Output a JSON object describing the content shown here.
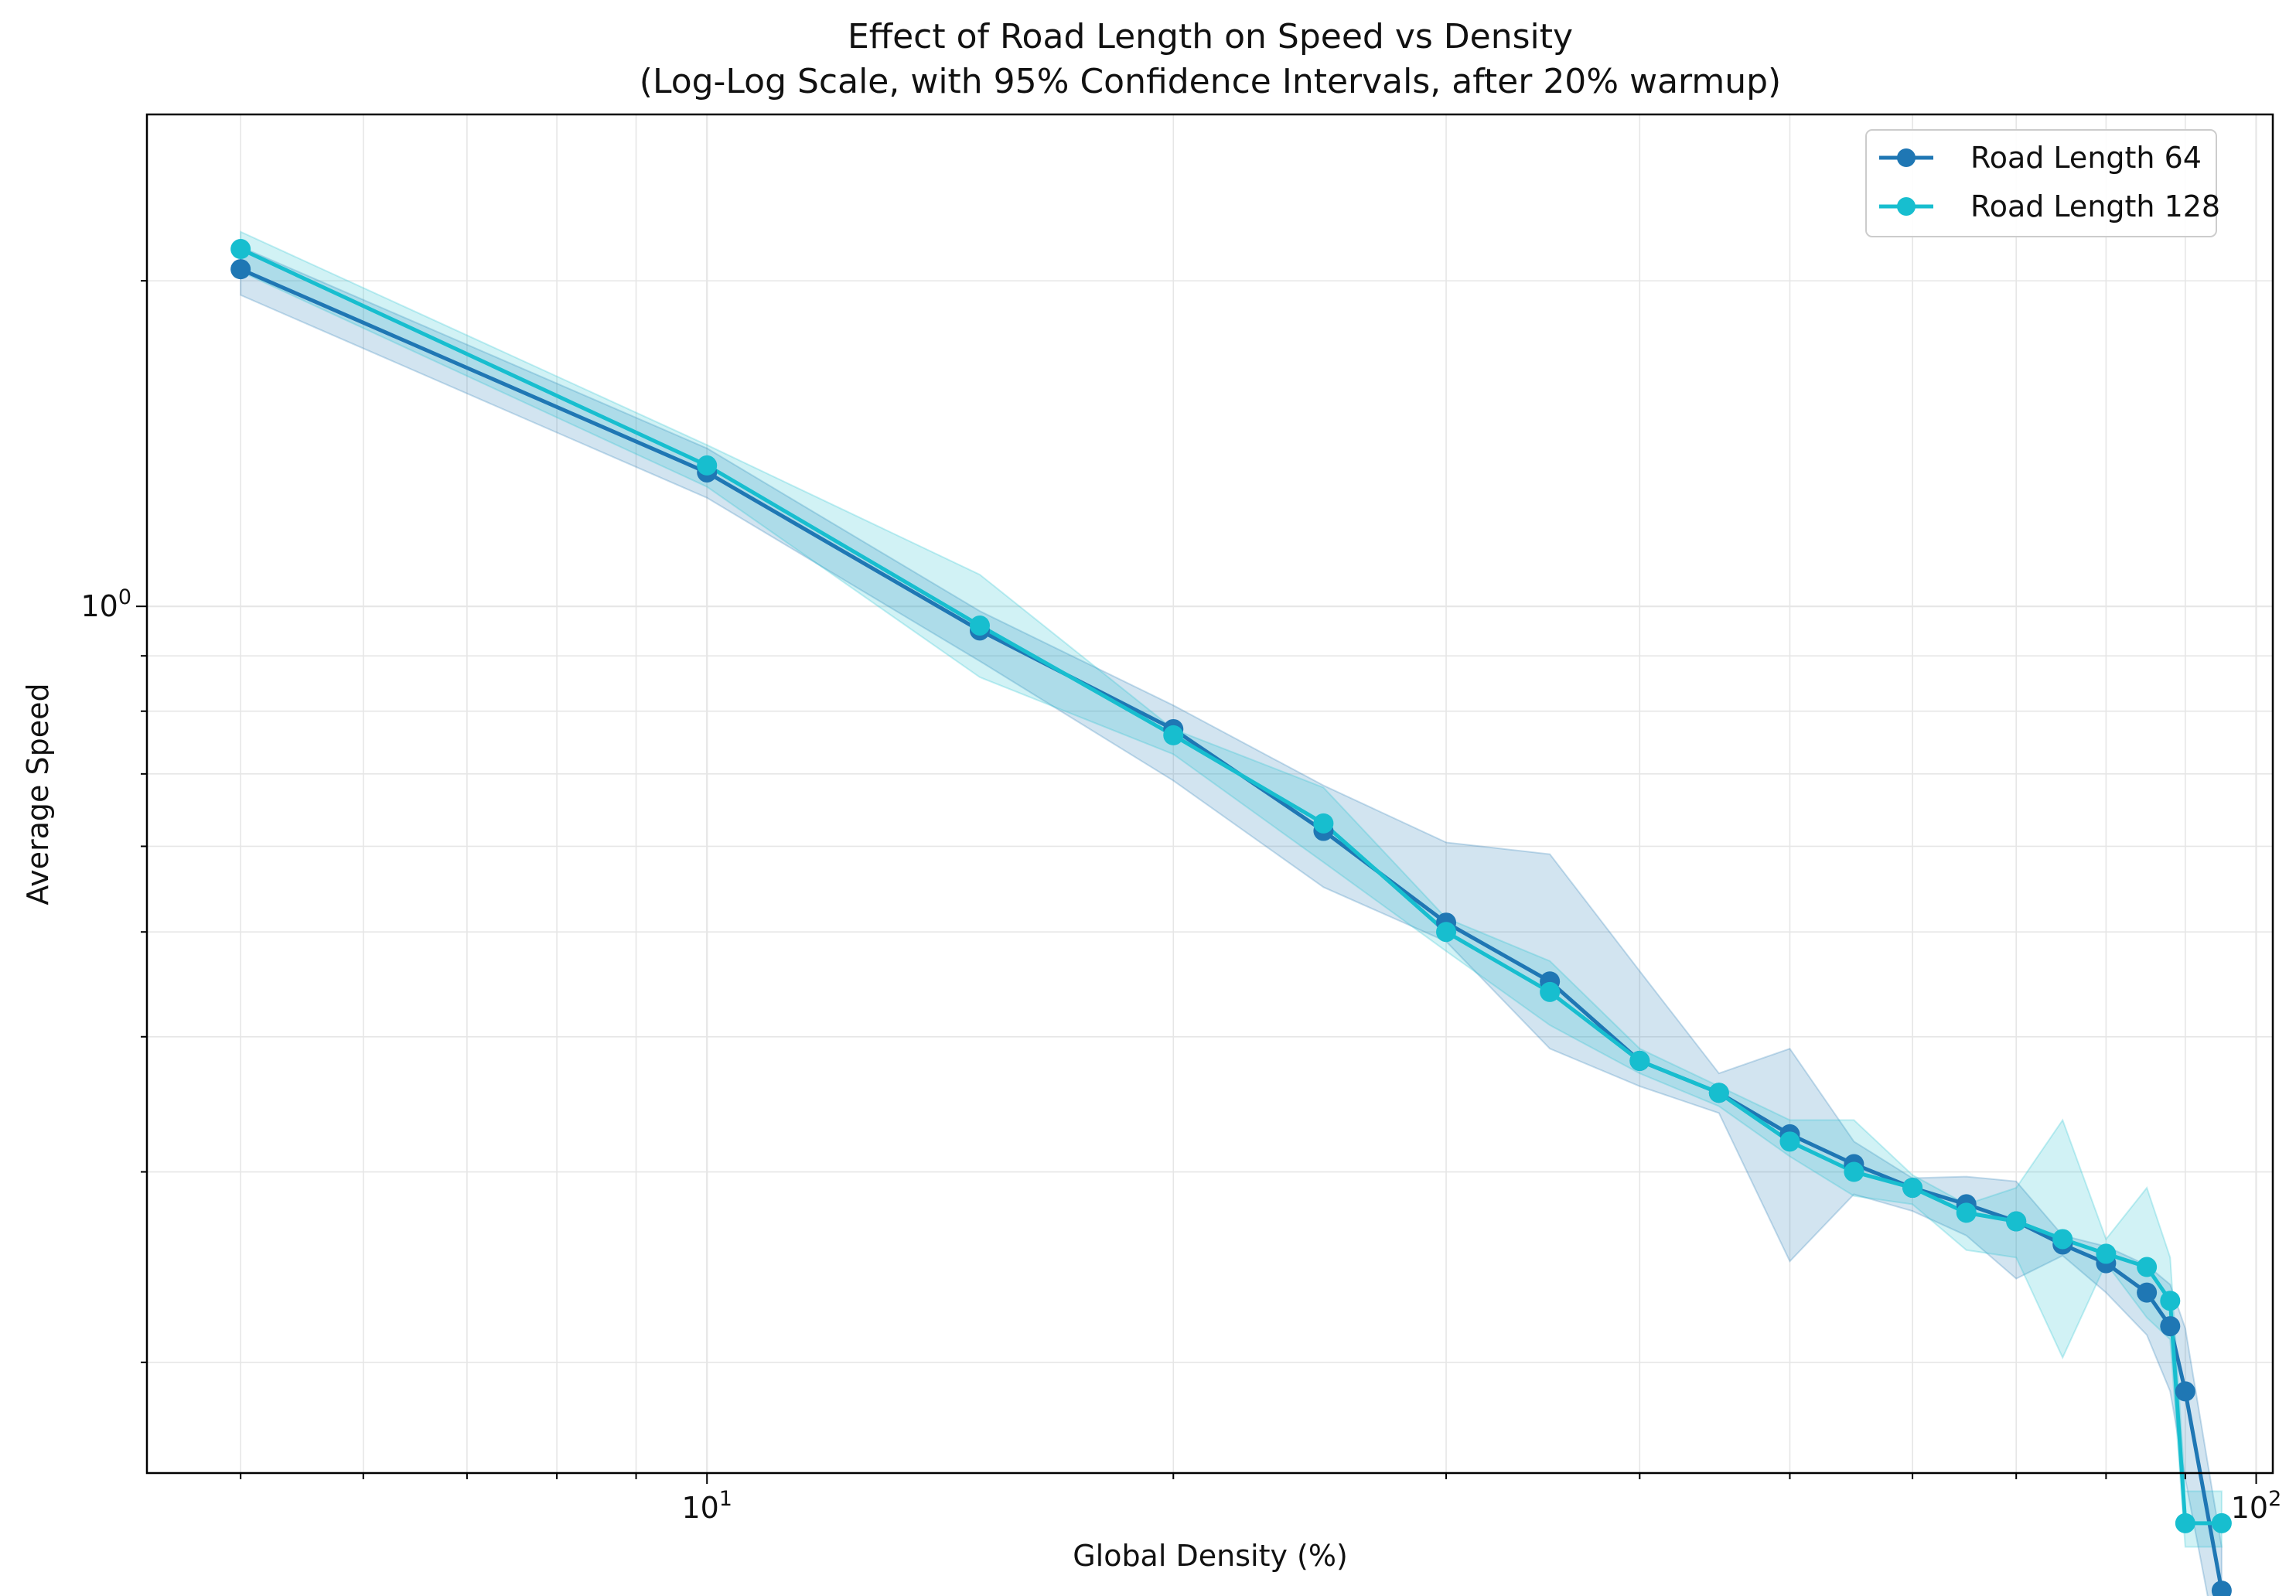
{
  "chart_data": {
    "type": "line",
    "title": "Effect of Road Length on Speed vs Density",
    "subtitle": "(Log-Log Scale, with 95% Confidence Intervals, after 20% warmup)",
    "xlabel": "Global Density (%)",
    "ylabel": "Average Speed",
    "xscale": "log",
    "yscale": "log",
    "xlim": [
      4.35,
      102.5
    ],
    "ylim": [
      0.158,
      2.85
    ],
    "grid": true,
    "legend_position": "top-right",
    "x_ticks": [
      {
        "value": 10,
        "base": "10",
        "exp": "1"
      },
      {
        "value": 100,
        "base": "10",
        "exp": "2"
      }
    ],
    "y_ticks": [
      {
        "value": 1,
        "base": "10",
        "exp": "0"
      }
    ],
    "x": [
      5,
      10,
      15,
      20,
      25,
      30,
      35,
      40,
      45,
      50,
      55,
      60,
      65,
      70,
      75,
      80,
      85,
      88,
      90,
      95
    ],
    "series": [
      {
        "name": "Road Length 64",
        "color": "#1f77b4",
        "values": [
          2.05,
          1.33,
          0.95,
          0.77,
          0.62,
          0.51,
          0.45,
          0.38,
          0.355,
          0.325,
          0.305,
          0.29,
          0.28,
          0.27,
          0.257,
          0.247,
          0.232,
          0.216,
          0.188,
          0.123
        ],
        "ci_low": [
          1.94,
          1.26,
          0.89,
          0.69,
          0.55,
          0.49,
          0.39,
          0.36,
          0.34,
          0.248,
          0.286,
          0.276,
          0.262,
          0.239,
          0.251,
          0.232,
          0.212,
          0.188,
          0.156,
          0.104
        ],
        "ci_high": [
          2.15,
          1.4,
          0.99,
          0.81,
          0.683,
          0.605,
          0.59,
          0.46,
          0.37,
          0.39,
          0.32,
          0.296,
          0.297,
          0.294,
          0.262,
          0.256,
          0.246,
          0.236,
          0.215,
          0.135
        ]
      },
      {
        "name": "Road Length 128",
        "color": "#17becf",
        "values": [
          2.14,
          1.35,
          0.96,
          0.76,
          0.63,
          0.5,
          0.44,
          0.38,
          0.355,
          0.32,
          0.3,
          0.29,
          0.275,
          0.27,
          0.26,
          0.252,
          0.245,
          0.228,
          0.142,
          0.142
        ],
        "ci_low": [
          2.04,
          1.29,
          0.86,
          0.73,
          0.58,
          0.48,
          0.41,
          0.37,
          0.345,
          0.31,
          0.285,
          0.28,
          0.254,
          0.25,
          0.202,
          0.247,
          0.22,
          0.21,
          0.135,
          0.135
        ],
        "ci_high": [
          2.22,
          1.41,
          1.07,
          0.77,
          0.68,
          0.515,
          0.47,
          0.39,
          0.36,
          0.335,
          0.335,
          0.298,
          0.28,
          0.29,
          0.335,
          0.26,
          0.29,
          0.25,
          0.152,
          0.152
        ]
      }
    ]
  }
}
